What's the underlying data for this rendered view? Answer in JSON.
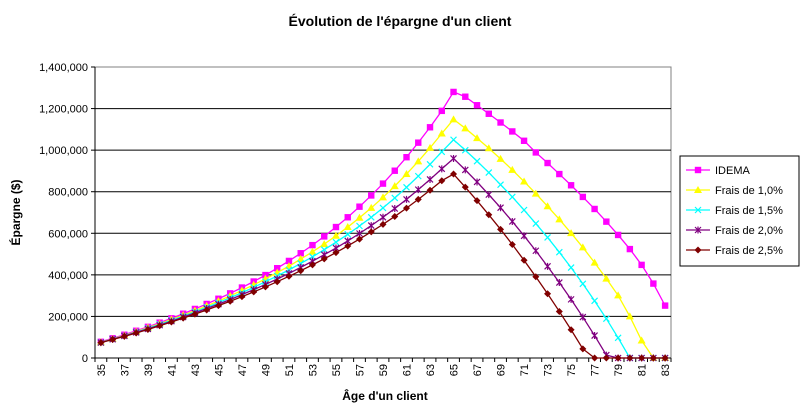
{
  "chart_data": {
    "type": "line",
    "title": "Évolution de l'épargne d'un client",
    "xlabel": "Âge d'un client",
    "ylabel": "Épargne ($)",
    "ylim": [
      0,
      1400000
    ],
    "yticks": [
      0,
      200000,
      400000,
      600000,
      800000,
      1000000,
      1200000,
      1400000
    ],
    "ytick_labels": [
      "0",
      "200,000",
      "400,000",
      "600,000",
      "800,000",
      "1,000,000",
      "1,200,000",
      "1,400,000"
    ],
    "xtick_labels": [
      "35",
      "37",
      "39",
      "41",
      "43",
      "45",
      "47",
      "49",
      "51",
      "53",
      "55",
      "57",
      "59",
      "61",
      "63",
      "65",
      "67",
      "69",
      "71",
      "73",
      "75",
      "77",
      "79",
      "81",
      "83"
    ],
    "grid": "horizontal",
    "legend_position": "right",
    "x": [
      35,
      36,
      37,
      38,
      39,
      40,
      41,
      42,
      43,
      44,
      45,
      46,
      47,
      48,
      49,
      50,
      51,
      52,
      53,
      54,
      55,
      56,
      57,
      58,
      59,
      60,
      61,
      62,
      63,
      64,
      65,
      66,
      67,
      68,
      69,
      70,
      71,
      72,
      73,
      74,
      75,
      76,
      77,
      78,
      79,
      80,
      81,
      82,
      83
    ],
    "series": [
      {
        "name": "IDEMA",
        "color": "#ff00ff",
        "marker": "square",
        "values": [
          78000,
          95000,
          112000,
          131000,
          150000,
          170000,
          191000,
          213000,
          236000,
          260000,
          285000,
          311000,
          339000,
          368000,
          399000,
          432000,
          467000,
          504000,
          543000,
          585000,
          630000,
          677000,
          728000,
          782000,
          839000,
          901000,
          966000,
          1036000,
          1110000,
          1189000,
          1280000,
          1257000,
          1216000,
          1175000,
          1133000,
          1090000,
          1045000,
          989000,
          938000,
          885000,
          831000,
          775000,
          717000,
          656000,
          592000,
          524000,
          448000,
          358000,
          252000
        ]
      },
      {
        "name": "Frais de 1,0%",
        "color": "#ffff00",
        "marker": "triangle",
        "values": [
          76000,
          92000,
          109000,
          127000,
          146000,
          165000,
          185000,
          206000,
          228000,
          251000,
          274000,
          299000,
          325000,
          352000,
          381000,
          411000,
          442000,
          476000,
          511000,
          548000,
          588000,
          630000,
          675000,
          722000,
          773000,
          827000,
          885000,
          946000,
          1011000,
          1080000,
          1148000,
          1105000,
          1058000,
          1009000,
          958000,
          905000,
          849000,
          791000,
          730000,
          667000,
          601000,
          532000,
          459000,
          382000,
          301000,
          200000,
          84000,
          0,
          0
        ]
      },
      {
        "name": "Frais de 1,5%",
        "color": "#00ffff",
        "marker": "x",
        "values": [
          75000,
          91000,
          107000,
          125000,
          143000,
          162000,
          181000,
          201000,
          222000,
          244000,
          266000,
          290000,
          314000,
          340000,
          367000,
          395000,
          424000,
          455000,
          487000,
          521000,
          557000,
          595000,
          635000,
          677000,
          722000,
          770000,
          821000,
          875000,
          932000,
          992000,
          1050000,
          1000000,
          947000,
          892000,
          834000,
          775000,
          712000,
          647000,
          580000,
          509000,
          435000,
          357000,
          275000,
          189000,
          97000,
          0,
          0,
          0,
          0
        ]
      },
      {
        "name": "Frais de 2,0%",
        "color": "#800080",
        "marker": "star",
        "values": [
          74000,
          90000,
          106000,
          123000,
          140000,
          158000,
          177000,
          197000,
          217000,
          238000,
          259000,
          281000,
          305000,
          329000,
          354000,
          380000,
          407000,
          436000,
          466000,
          497000,
          529000,
          563000,
          599000,
          637000,
          677000,
          719000,
          763000,
          810000,
          859000,
          910000,
          960000,
          905000,
          847000,
          786000,
          723000,
          657000,
          588000,
          516000,
          441000,
          363000,
          282000,
          197000,
          108000,
          14000,
          0,
          0,
          0,
          0,
          0
        ]
      },
      {
        "name": "Frais de 2,5%",
        "color": "#800000",
        "marker": "diamond",
        "values": [
          74000,
          89000,
          104000,
          120000,
          137000,
          155000,
          173000,
          192000,
          211000,
          231000,
          252000,
          273000,
          295000,
          318000,
          342000,
          367000,
          393000,
          420000,
          448000,
          477000,
          507000,
          539000,
          572000,
          607000,
          643000,
          681000,
          721000,
          763000,
          807000,
          853000,
          885000,
          822000,
          757000,
          689000,
          619000,
          546000,
          470000,
          391000,
          309000,
          224000,
          136000,
          44000,
          0,
          0,
          0,
          0,
          0,
          0,
          0
        ]
      }
    ]
  }
}
